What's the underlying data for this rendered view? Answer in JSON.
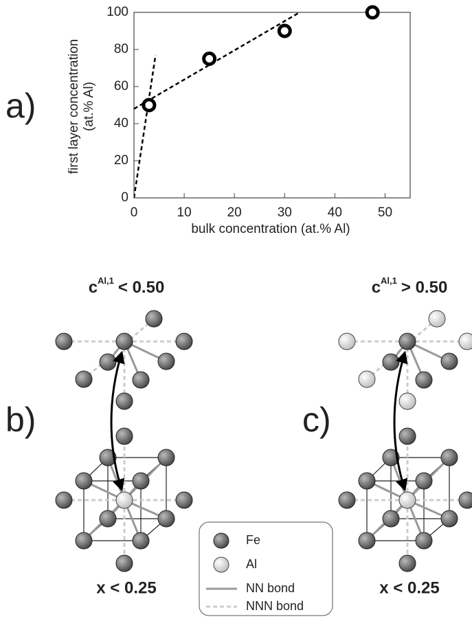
{
  "chart_data": {
    "type": "scatter",
    "panel_label": "a)",
    "xlabel": "bulk concentration (at.% Al)",
    "ylabel": [
      "first layer concentration",
      "(at.% Al)"
    ],
    "xlim": [
      0,
      55
    ],
    "ylim": [
      0,
      100
    ],
    "xticks": [
      0,
      10,
      20,
      30,
      40,
      50
    ],
    "yticks": [
      0,
      20,
      40,
      60,
      80,
      100
    ],
    "series": [
      {
        "x": [
          3,
          15,
          30,
          47.5
        ],
        "values": [
          50,
          75,
          90,
          100
        ],
        "color": "#000000"
      }
    ],
    "fits": [
      {
        "x": [
          0,
          4.3
        ],
        "values": [
          0,
          77
        ],
        "color": "#000000"
      },
      {
        "x": [
          0,
          33
        ],
        "values": [
          48,
          100
        ],
        "color": "#000000"
      }
    ]
  },
  "diagrams": [
    {
      "label": "b)",
      "title": {
        "base": "c",
        "sup": "Al,1",
        "rel": "< 0.50"
      },
      "caption": "x < 0.25"
    },
    {
      "label": "c)",
      "title": {
        "base": "c",
        "sup": "Al,1",
        "rel": "> 0.50"
      },
      "caption": "x < 0.25"
    }
  ],
  "legend": {
    "items": [
      "Fe",
      "Al",
      "NN bond",
      "NNN bond"
    ]
  }
}
